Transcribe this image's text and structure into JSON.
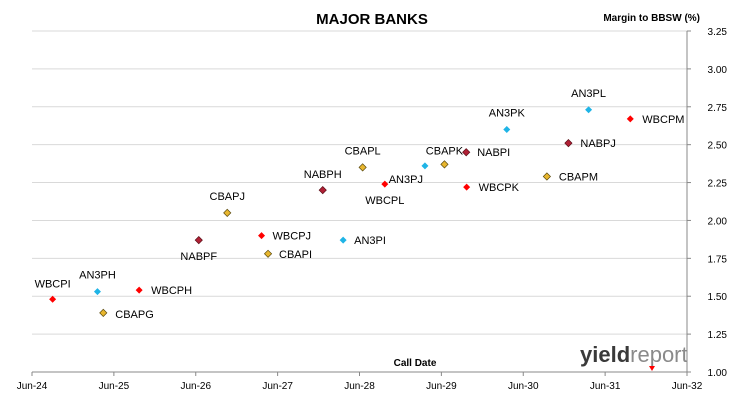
{
  "chart_data": {
    "type": "scatter",
    "title": "MAJOR BANKS",
    "xlabel": "Call Date",
    "ylabel": "Margin to BBSW (%)",
    "xlim": [
      "2024-06-01",
      "2032-06-01"
    ],
    "ylim": [
      1.0,
      3.25
    ],
    "x_tick_labels": [
      "Jun-24",
      "Jun-25",
      "Jun-26",
      "Jun-27",
      "Jun-28",
      "Jun-29",
      "Jun-30",
      "Jun-31",
      "Jun-32"
    ],
    "y_tick_labels": [
      "1.00",
      "1.25",
      "1.50",
      "1.75",
      "2.00",
      "2.25",
      "2.50",
      "2.75",
      "3.00",
      "3.25"
    ],
    "grid": true,
    "colors": {
      "WBC": "#ff0000",
      "ANZ": "#1fb4e6",
      "CBA": "#e8b62e",
      "NAB": "#b02035"
    },
    "points": [
      {
        "label": "WBCPI",
        "x": "2024-09-01",
        "y": 1.48,
        "group": "WBC"
      },
      {
        "label": "AN3PH",
        "x": "2025-03-20",
        "y": 1.53,
        "group": "ANZ"
      },
      {
        "label": "CBAPG",
        "x": "2025-04-15",
        "y": 1.39,
        "group": "CBA"
      },
      {
        "label": "WBCPH",
        "x": "2025-09-22",
        "y": 1.54,
        "group": "WBC"
      },
      {
        "label": "NABPF",
        "x": "2026-06-15",
        "y": 1.87,
        "group": "NAB"
      },
      {
        "label": "CBAPJ",
        "x": "2026-10-20",
        "y": 2.05,
        "group": "CBA"
      },
      {
        "label": "WBCPJ",
        "x": "2027-03-22",
        "y": 1.9,
        "group": "WBC"
      },
      {
        "label": "CBAPI",
        "x": "2027-04-20",
        "y": 1.78,
        "group": "CBA"
      },
      {
        "label": "NABPH",
        "x": "2027-12-20",
        "y": 2.2,
        "group": "NAB"
      },
      {
        "label": "AN3PI",
        "x": "2028-03-20",
        "y": 1.87,
        "group": "ANZ"
      },
      {
        "label": "CBAPL",
        "x": "2028-06-15",
        "y": 2.35,
        "group": "CBA"
      },
      {
        "label": "WBCPL",
        "x": "2028-09-22",
        "y": 2.24,
        "group": "WBC"
      },
      {
        "label": "AN3PJ",
        "x": "2029-03-20",
        "y": 2.36,
        "group": "ANZ"
      },
      {
        "label": "CBAPK",
        "x": "2029-06-15",
        "y": 2.37,
        "group": "CBA"
      },
      {
        "label": "NABPI",
        "x": "2029-09-20",
        "y": 2.45,
        "group": "NAB"
      },
      {
        "label": "WBCPK",
        "x": "2029-09-22",
        "y": 2.22,
        "group": "WBC"
      },
      {
        "label": "AN3PK",
        "x": "2030-03-20",
        "y": 2.6,
        "group": "ANZ"
      },
      {
        "label": "CBAPM",
        "x": "2030-09-15",
        "y": 2.29,
        "group": "CBA"
      },
      {
        "label": "NABPJ",
        "x": "2030-12-20",
        "y": 2.51,
        "group": "NAB"
      },
      {
        "label": "AN3PL",
        "x": "2031-03-20",
        "y": 2.73,
        "group": "ANZ"
      },
      {
        "label": "WBCPM",
        "x": "2031-09-22",
        "y": 2.67,
        "group": "WBC"
      }
    ]
  },
  "logo": {
    "part1": "yield",
    "part2": "report"
  }
}
